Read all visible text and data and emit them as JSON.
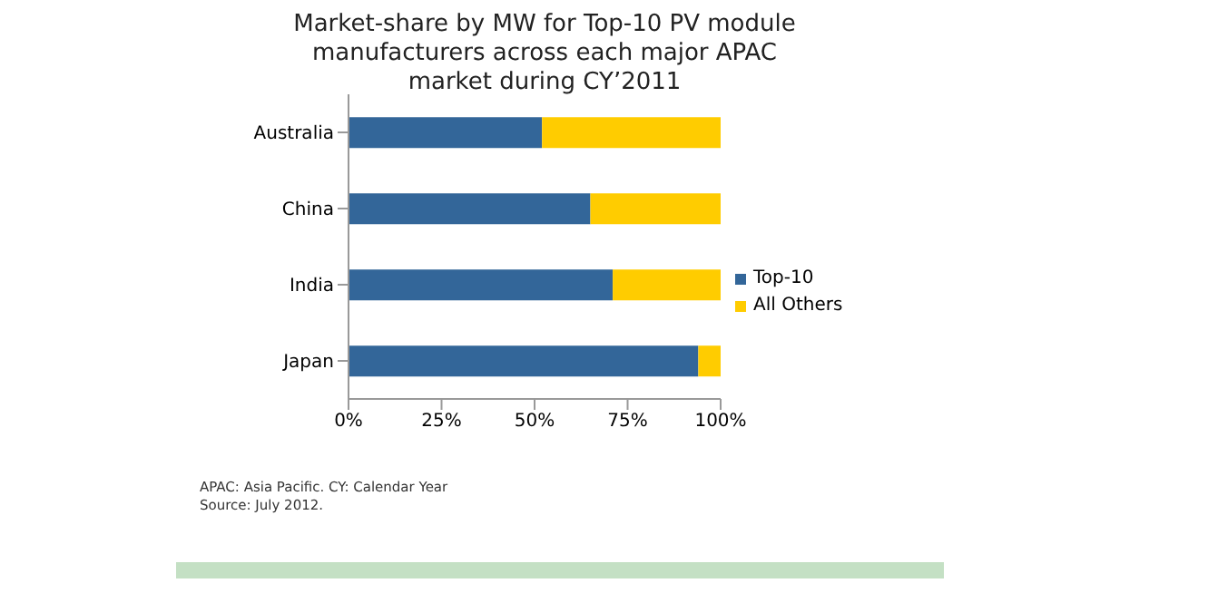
{
  "chart_data": {
    "type": "bar",
    "orientation": "horizontal",
    "stacked": true,
    "title": "Market-share by MW for Top-10 PV module manufacturers across each major APAC market during CY’2011",
    "categories": [
      "Australia",
      "China",
      "India",
      "Japan"
    ],
    "series": [
      {
        "name": "Top-10",
        "color": "#336699",
        "values": [
          52,
          65,
          71,
          94
        ]
      },
      {
        "name": "All Others",
        "color": "#ffcc00",
        "values": [
          48,
          35,
          29,
          6
        ]
      }
    ],
    "xlim": [
      0,
      100
    ],
    "xticks": [
      {
        "value": 0,
        "label": "0%"
      },
      {
        "value": 25,
        "label": "25%"
      },
      {
        "value": 50,
        "label": "50%"
      },
      {
        "value": 75,
        "label": "75%"
      },
      {
        "value": 100,
        "label": "100%"
      }
    ],
    "grid": false,
    "legend": "right",
    "annotations": [
      "APAC: Asia Pacific. CY: Calendar Year",
      "Source: July 2012."
    ]
  }
}
